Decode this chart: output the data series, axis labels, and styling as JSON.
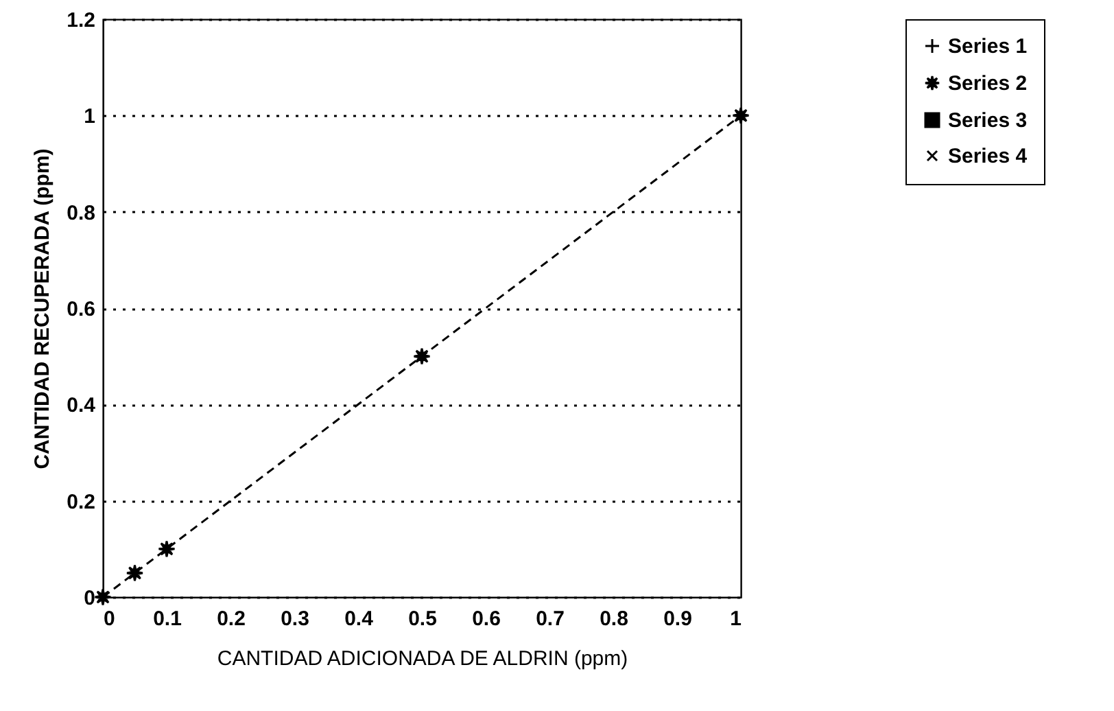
{
  "chart_data": {
    "type": "line",
    "xlabel": "CANTIDAD ADICIONADA DE ALDRIN (ppm)",
    "ylabel": "CANTIDAD RECUPERADA (ppm)",
    "x": [
      0,
      0.05,
      0.1,
      0.5,
      1
    ],
    "series": [
      {
        "name": "Series 1",
        "color": "#000000",
        "marker": "cross",
        "values": [
          null,
          null,
          null,
          null,
          null
        ]
      },
      {
        "name": "Series 2",
        "color": "#000000",
        "marker": "star",
        "line_style": "dashed",
        "values": [
          0,
          0.05,
          0.1,
          0.5,
          1
        ]
      },
      {
        "name": "Series 3",
        "color": "#000000",
        "marker": "square",
        "values": [
          null,
          null,
          null,
          null,
          null
        ]
      },
      {
        "name": "Series 4",
        "color": "#000000",
        "marker": "x",
        "values": [
          null,
          null,
          null,
          null,
          null
        ]
      }
    ],
    "xlim": [
      0,
      1
    ],
    "xticks": [
      0,
      0.1,
      0.2,
      0.3,
      0.4,
      0.5,
      0.6,
      0.7,
      0.8,
      0.9,
      1
    ],
    "ylim": [
      0,
      1.2
    ],
    "yticks": [
      0,
      0.2,
      0.4,
      0.6,
      0.8,
      1,
      1.2
    ],
    "grid": "y",
    "legend": "right"
  }
}
